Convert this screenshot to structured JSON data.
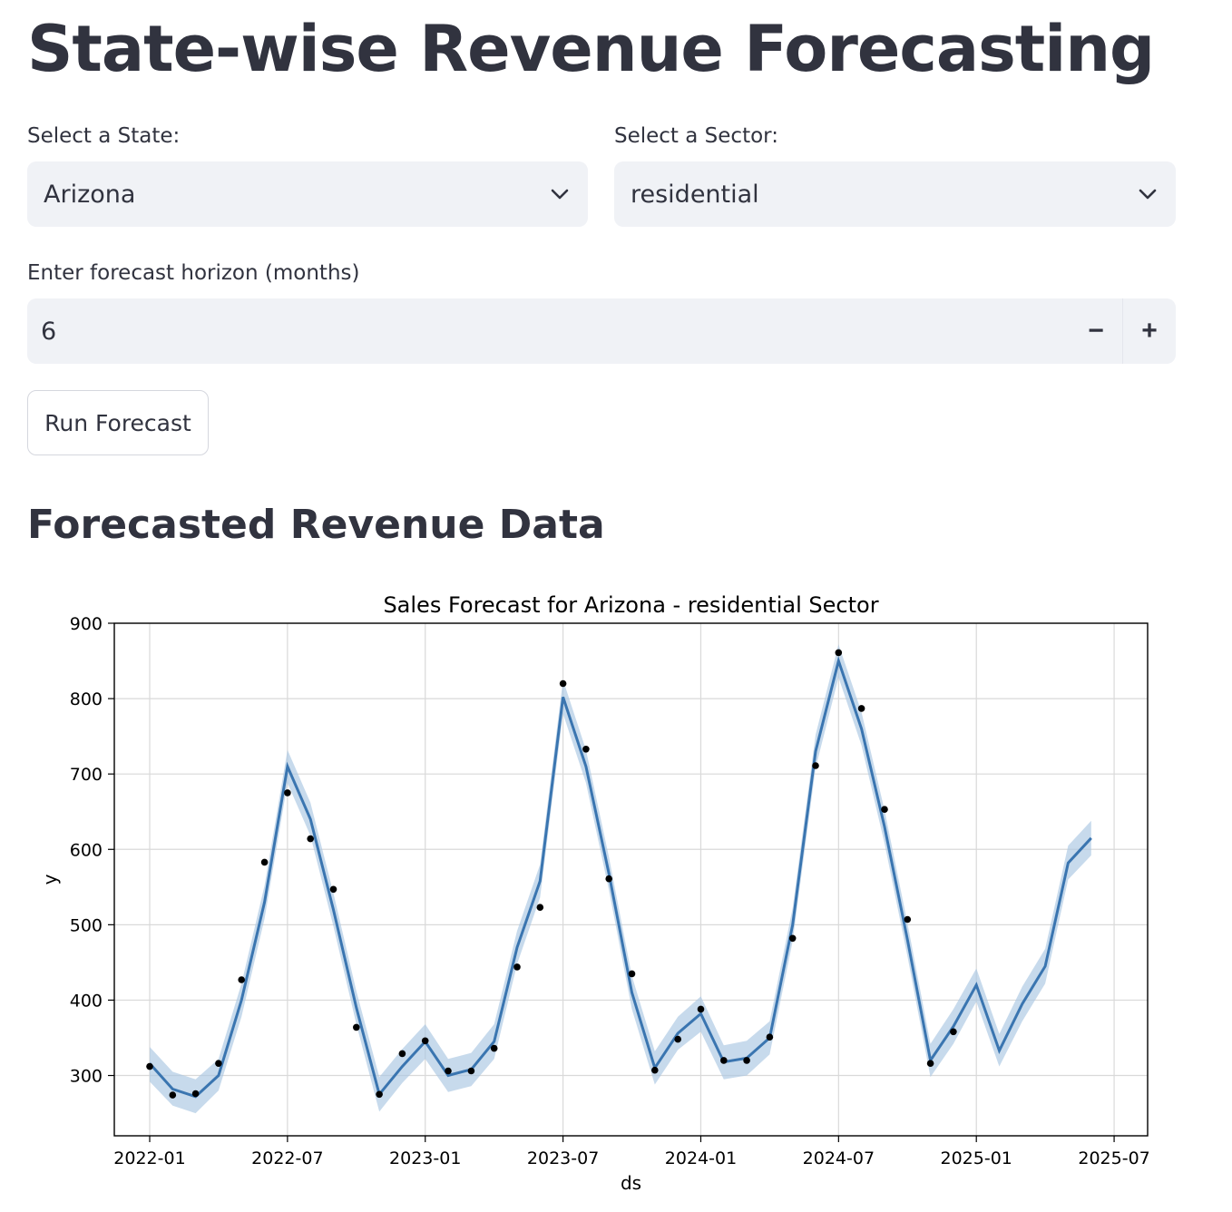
{
  "page": {
    "title": "State-wise Revenue Forecasting",
    "subheader": "Forecasted Revenue Data"
  },
  "state_select": {
    "label": "Select a State:",
    "value": "Arizona",
    "icon": "chevron-down-icon"
  },
  "sector_select": {
    "label": "Select a Sector:",
    "value": "residential",
    "icon": "chevron-down-icon"
  },
  "horizon_input": {
    "label": "Enter forecast horizon (months)",
    "value": "6",
    "decrement": "−",
    "increment": "+"
  },
  "run_button": {
    "label": "Run Forecast"
  },
  "colors": {
    "forecast_line": "#3a75b0",
    "interval": "#a9c6e2",
    "observed": "#000000",
    "widget_bg": "#f0f2f6",
    "text": "#31333f"
  },
  "chart_data": {
    "type": "line",
    "title": "Sales Forecast for Arizona - residential Sector",
    "xlabel": "ds",
    "ylabel": "y",
    "ylim": [
      220,
      900
    ],
    "xlim": [
      "2021-11-15",
      "2025-08-15"
    ],
    "y_ticks": [
      300,
      400,
      500,
      600,
      700,
      800,
      900
    ],
    "x_ticks": [
      "2022-01",
      "2022-07",
      "2023-01",
      "2023-07",
      "2024-01",
      "2024-07",
      "2025-01",
      "2025-07"
    ],
    "grid": true,
    "series": [
      {
        "role": "forecast",
        "x": [
          "2022-01",
          "2022-02",
          "2022-03",
          "2022-04",
          "2022-05",
          "2022-06",
          "2022-07",
          "2022-08",
          "2022-09",
          "2022-10",
          "2022-11",
          "2022-12",
          "2023-01",
          "2023-02",
          "2023-03",
          "2023-04",
          "2023-05",
          "2023-06",
          "2023-07",
          "2023-08",
          "2023-09",
          "2023-10",
          "2023-11",
          "2023-12",
          "2024-01",
          "2024-02",
          "2024-03",
          "2024-04",
          "2024-05",
          "2024-06",
          "2024-07",
          "2024-08",
          "2024-09",
          "2024-10",
          "2024-11",
          "2024-12",
          "2025-01",
          "2025-02",
          "2025-03",
          "2025-04",
          "2025-05",
          "2025-06"
        ],
        "values": [
          316,
          282,
          272,
          300,
          400,
          530,
          710,
          640,
          520,
          390,
          275,
          312,
          345,
          300,
          308,
          345,
          470,
          558,
          802,
          710,
          568,
          410,
          310,
          356,
          382,
          318,
          323,
          350,
          500,
          730,
          850,
          760,
          630,
          480,
          320,
          365,
          420,
          333,
          395,
          445,
          582,
          615
        ],
        "lower": [
          292,
          260,
          250,
          280,
          378,
          508,
          688,
          618,
          498,
          368,
          252,
          290,
          322,
          278,
          286,
          322,
          448,
          536,
          780,
          688,
          546,
          388,
          288,
          334,
          358,
          295,
          300,
          328,
          478,
          708,
          828,
          738,
          608,
          458,
          298,
          342,
          398,
          312,
          372,
          422,
          560,
          592
        ],
        "upper": [
          338,
          305,
          295,
          322,
          422,
          552,
          732,
          662,
          542,
          412,
          298,
          335,
          368,
          322,
          330,
          368,
          492,
          580,
          825,
          732,
          590,
          432,
          332,
          378,
          405,
          340,
          346,
          372,
          522,
          752,
          872,
          782,
          652,
          502,
          342,
          388,
          442,
          355,
          418,
          468,
          605,
          638
        ]
      },
      {
        "role": "observed",
        "x": [
          "2022-01",
          "2022-02",
          "2022-03",
          "2022-04",
          "2022-05",
          "2022-06",
          "2022-07",
          "2022-08",
          "2022-09",
          "2022-10",
          "2022-11",
          "2022-12",
          "2023-01",
          "2023-02",
          "2023-03",
          "2023-04",
          "2023-05",
          "2023-06",
          "2023-07",
          "2023-08",
          "2023-09",
          "2023-10",
          "2023-11",
          "2023-12",
          "2024-01",
          "2024-02",
          "2024-03",
          "2024-04",
          "2024-05",
          "2024-06",
          "2024-07",
          "2024-08",
          "2024-09",
          "2024-10",
          "2024-11",
          "2024-12"
        ],
        "values": [
          312,
          274,
          276,
          316,
          427,
          583,
          675,
          614,
          547,
          364,
          275,
          329,
          346,
          306,
          306,
          336,
          444,
          523,
          820,
          733,
          561,
          435,
          307,
          348,
          388,
          320,
          320,
          351,
          482,
          711,
          861,
          787,
          653,
          507,
          316,
          358
        ]
      }
    ]
  }
}
